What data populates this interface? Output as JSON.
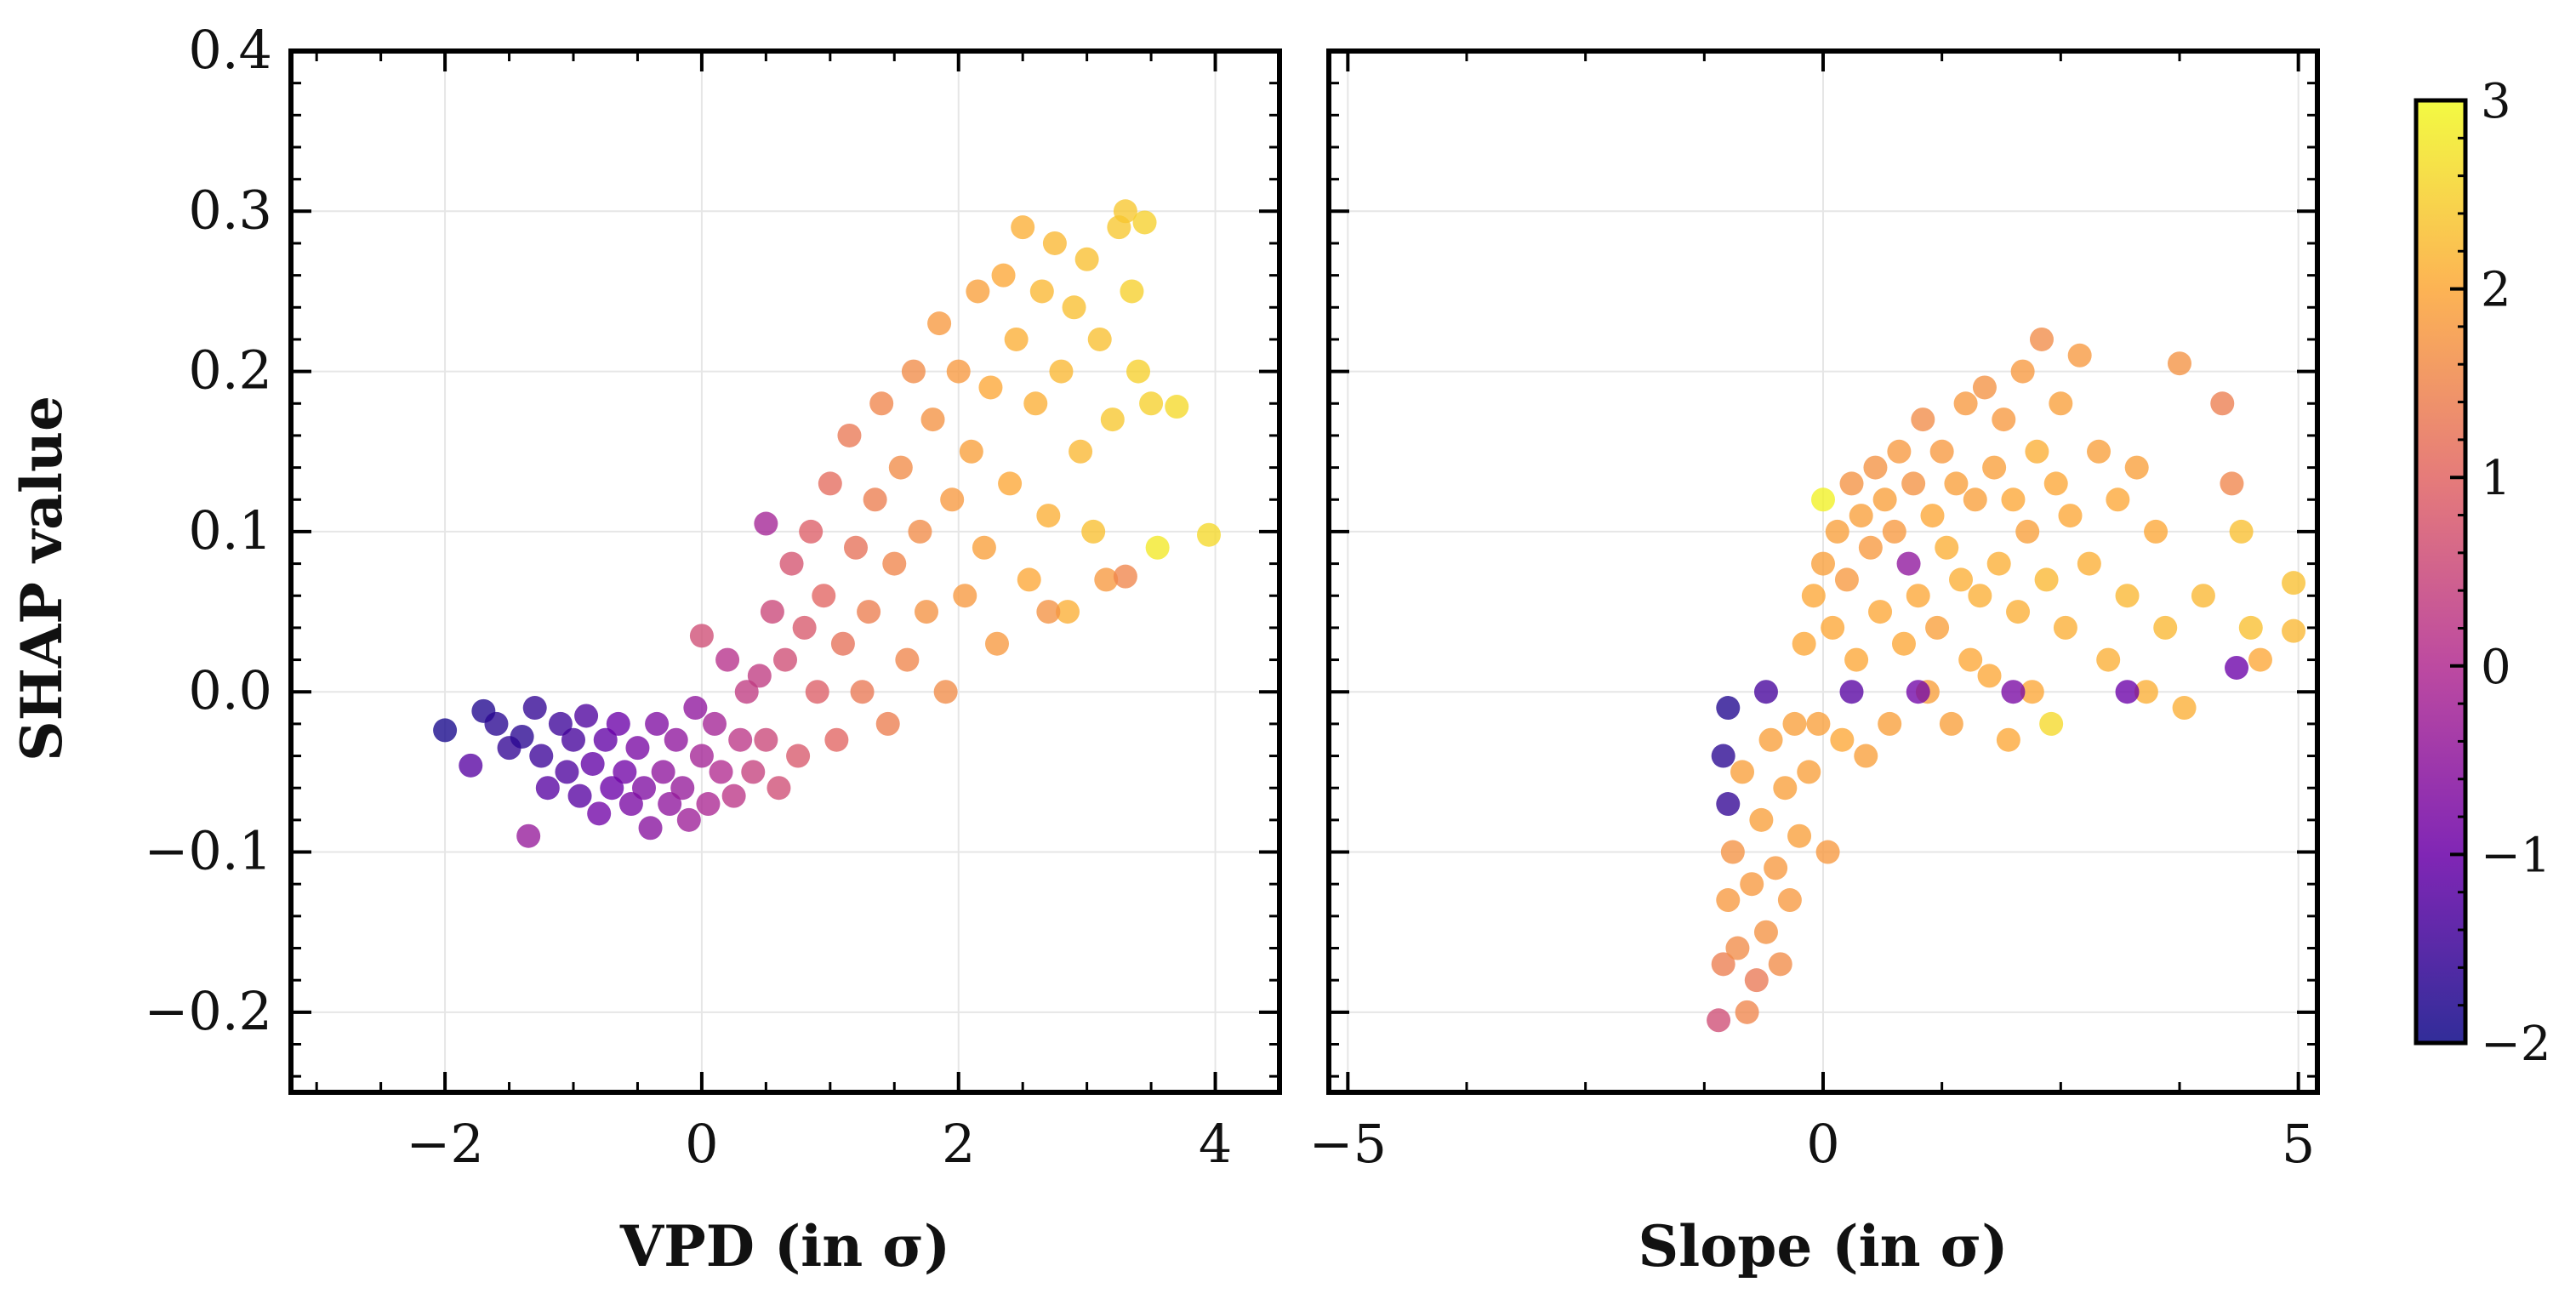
{
  "colors": {
    "colormap": "plasma",
    "colormap_stops": [
      "#0d0887",
      "#6a00a8",
      "#b12a90",
      "#e16462",
      "#fca636",
      "#f0f921"
    ],
    "marker_alpha": 0.78,
    "gridline": "#e6e6e6",
    "axes": "#000000"
  },
  "ylabel": "SHAP value",
  "colorbar": {
    "range": [
      -2,
      3
    ],
    "ticks": [
      -2,
      -1,
      0,
      1,
      2,
      3
    ],
    "tick_labels": [
      "−2",
      "−1",
      "0",
      "1",
      "2",
      "3"
    ]
  },
  "chart_data": [
    {
      "type": "scatter",
      "xlabel": "VPD (in σ)",
      "ylabel": "SHAP value",
      "xlim": [
        -3.2,
        4.5
      ],
      "ylim": [
        -0.25,
        0.4
      ],
      "xticks": [
        -2,
        0,
        2,
        4
      ],
      "xtick_labels": [
        "−2",
        "0",
        "2",
        "4"
      ],
      "yticks": [
        -0.2,
        -0.1,
        0.0,
        0.1,
        0.2,
        0.3,
        0.4
      ],
      "ytick_labels": [
        "−0.2",
        "−0.1",
        "0.0",
        "0.1",
        "0.2",
        "0.3",
        "0.4"
      ],
      "grid": true,
      "color_by": "feature value (in σ)",
      "points": [
        [
          -2.0,
          -0.024,
          -1.9
        ],
        [
          -1.8,
          -0.046,
          -1.2
        ],
        [
          -1.7,
          -0.012,
          -1.8
        ],
        [
          -1.6,
          -0.02,
          -1.7
        ],
        [
          -1.5,
          -0.035,
          -1.6
        ],
        [
          -1.4,
          -0.028,
          -1.7
        ],
        [
          -1.35,
          -0.09,
          -0.4
        ],
        [
          -1.3,
          -0.01,
          -1.6
        ],
        [
          -1.25,
          -0.04,
          -1.5
        ],
        [
          -1.2,
          -0.06,
          -1.2
        ],
        [
          -1.1,
          -0.02,
          -1.5
        ],
        [
          -1.05,
          -0.05,
          -1.3
        ],
        [
          -1.0,
          -0.03,
          -1.4
        ],
        [
          -0.95,
          -0.065,
          -1.2
        ],
        [
          -0.9,
          -0.015,
          -1.3
        ],
        [
          -0.85,
          -0.045,
          -1.1
        ],
        [
          -0.8,
          -0.076,
          -0.9
        ],
        [
          -0.75,
          -0.03,
          -1.1
        ],
        [
          -0.7,
          -0.06,
          -1.0
        ],
        [
          -0.65,
          -0.02,
          -1.0
        ],
        [
          -0.6,
          -0.05,
          -0.9
        ],
        [
          -0.55,
          -0.07,
          -0.8
        ],
        [
          -0.5,
          -0.035,
          -0.8
        ],
        [
          -0.45,
          -0.06,
          -0.7
        ],
        [
          -0.4,
          -0.085,
          -0.6
        ],
        [
          -0.35,
          -0.02,
          -0.7
        ],
        [
          -0.3,
          -0.05,
          -0.5
        ],
        [
          -0.25,
          -0.07,
          -0.5
        ],
        [
          -0.2,
          -0.03,
          -0.5
        ],
        [
          -0.15,
          -0.06,
          -0.4
        ],
        [
          -0.1,
          -0.08,
          -0.3
        ],
        [
          -0.05,
          -0.01,
          -0.5
        ],
        [
          0.0,
          -0.04,
          -0.2
        ],
        [
          0.0,
          0.035,
          0.6
        ],
        [
          0.05,
          -0.07,
          -0.1
        ],
        [
          0.1,
          -0.02,
          -0.2
        ],
        [
          0.15,
          -0.05,
          0.0
        ],
        [
          0.2,
          0.02,
          0.1
        ],
        [
          0.25,
          -0.065,
          0.2
        ],
        [
          0.3,
          -0.03,
          0.2
        ],
        [
          0.35,
          0.0,
          0.3
        ],
        [
          0.4,
          -0.05,
          0.4
        ],
        [
          0.45,
          0.01,
          0.3
        ],
        [
          0.5,
          0.105,
          -0.2
        ],
        [
          0.5,
          -0.03,
          0.5
        ],
        [
          0.55,
          0.05,
          0.5
        ],
        [
          0.6,
          -0.06,
          0.6
        ],
        [
          0.65,
          0.02,
          0.6
        ],
        [
          0.7,
          0.08,
          0.7
        ],
        [
          0.75,
          -0.04,
          0.8
        ],
        [
          0.8,
          0.04,
          0.8
        ],
        [
          0.85,
          0.1,
          0.9
        ],
        [
          0.9,
          0.0,
          0.9
        ],
        [
          0.95,
          0.06,
          1.0
        ],
        [
          1.0,
          0.13,
          1.1
        ],
        [
          1.05,
          -0.03,
          1.0
        ],
        [
          1.1,
          0.03,
          1.2
        ],
        [
          1.15,
          0.16,
          1.3
        ],
        [
          1.2,
          0.09,
          1.2
        ],
        [
          1.25,
          0.0,
          1.3
        ],
        [
          1.3,
          0.05,
          1.4
        ],
        [
          1.35,
          0.12,
          1.4
        ],
        [
          1.4,
          0.18,
          1.5
        ],
        [
          1.45,
          -0.02,
          1.4
        ],
        [
          1.5,
          0.08,
          1.5
        ],
        [
          1.55,
          0.14,
          1.6
        ],
        [
          1.6,
          0.02,
          1.5
        ],
        [
          1.65,
          0.2,
          1.6
        ],
        [
          1.7,
          0.1,
          1.6
        ],
        [
          1.75,
          0.05,
          1.7
        ],
        [
          1.8,
          0.17,
          1.7
        ],
        [
          1.85,
          0.23,
          1.8
        ],
        [
          1.9,
          0.0,
          1.6
        ],
        [
          1.95,
          0.12,
          1.8
        ],
        [
          2.0,
          0.2,
          1.8
        ],
        [
          2.05,
          0.06,
          1.8
        ],
        [
          2.1,
          0.15,
          1.9
        ],
        [
          2.15,
          0.25,
          1.9
        ],
        [
          2.2,
          0.09,
          1.9
        ],
        [
          2.25,
          0.19,
          2.0
        ],
        [
          2.3,
          0.03,
          1.8
        ],
        [
          2.35,
          0.26,
          2.0
        ],
        [
          2.4,
          0.13,
          2.0
        ],
        [
          2.45,
          0.22,
          2.1
        ],
        [
          2.5,
          0.29,
          2.1
        ],
        [
          2.55,
          0.07,
          2.0
        ],
        [
          2.6,
          0.18,
          2.1
        ],
        [
          2.65,
          0.25,
          2.2
        ],
        [
          2.7,
          0.11,
          2.1
        ],
        [
          2.75,
          0.28,
          2.2
        ],
        [
          2.8,
          0.2,
          2.2
        ],
        [
          2.85,
          0.05,
          2.1
        ],
        [
          2.9,
          0.24,
          2.3
        ],
        [
          2.95,
          0.15,
          2.2
        ],
        [
          3.0,
          0.27,
          2.3
        ],
        [
          3.05,
          0.1,
          2.3
        ],
        [
          3.1,
          0.22,
          2.3
        ],
        [
          3.15,
          0.07,
          1.8
        ],
        [
          3.2,
          0.17,
          2.4
        ],
        [
          3.25,
          0.29,
          2.4
        ],
        [
          3.3,
          0.3,
          2.4
        ],
        [
          3.35,
          0.25,
          2.5
        ],
        [
          3.4,
          0.2,
          2.5
        ],
        [
          3.45,
          0.293,
          2.5
        ],
        [
          3.5,
          0.18,
          2.5
        ],
        [
          3.55,
          0.09,
          2.8
        ],
        [
          3.7,
          0.178,
          2.6
        ],
        [
          3.95,
          0.098,
          2.6
        ],
        [
          3.3,
          0.072,
          1.5
        ],
        [
          2.7,
          0.05,
          1.7
        ]
      ]
    },
    {
      "type": "scatter",
      "xlabel": "Slope (in σ)",
      "ylabel": "",
      "xlim": [
        -5.2,
        5.2
      ],
      "ylim": [
        -0.25,
        0.4
      ],
      "xticks": [
        -5,
        0,
        5
      ],
      "xtick_labels": [
        "−5",
        "0",
        "5"
      ],
      "yticks": [
        -0.2,
        -0.1,
        0.0,
        0.1,
        0.2,
        0.3,
        0.4
      ],
      "ytick_labels": [
        "",
        "",
        "",
        "",
        "",
        "",
        ""
      ],
      "grid": true,
      "color_by": "feature value (in σ)",
      "points": [
        [
          -1.1,
          -0.205,
          0.6
        ],
        [
          -1.05,
          -0.17,
          1.4
        ],
        [
          -1.0,
          -0.13,
          1.8
        ],
        [
          -1.0,
          -0.07,
          -1.6
        ],
        [
          -1.05,
          -0.04,
          -1.7
        ],
        [
          -1.0,
          -0.01,
          -1.8
        ],
        [
          -0.95,
          -0.1,
          1.7
        ],
        [
          -0.9,
          -0.16,
          1.6
        ],
        [
          -0.85,
          -0.05,
          1.9
        ],
        [
          -0.8,
          -0.2,
          1.5
        ],
        [
          -0.75,
          -0.12,
          1.8
        ],
        [
          -0.7,
          -0.18,
          1.3
        ],
        [
          -0.65,
          -0.08,
          1.9
        ],
        [
          -0.6,
          -0.15,
          1.7
        ],
        [
          -0.55,
          -0.03,
          1.9
        ],
        [
          -0.5,
          -0.11,
          1.8
        ],
        [
          -0.45,
          -0.17,
          1.6
        ],
        [
          -0.4,
          -0.06,
          1.9
        ],
        [
          -0.35,
          -0.13,
          1.8
        ],
        [
          -0.3,
          -0.02,
          1.9
        ],
        [
          -0.25,
          -0.09,
          1.9
        ],
        [
          -0.2,
          0.03,
          2.0
        ],
        [
          -0.15,
          -0.05,
          1.9
        ],
        [
          -0.1,
          0.06,
          2.0
        ],
        [
          -0.05,
          -0.02,
          1.9
        ],
        [
          0.0,
          0.12,
          2.9
        ],
        [
          0.0,
          0.08,
          1.9
        ],
        [
          0.05,
          -0.1,
          1.8
        ],
        [
          0.1,
          0.04,
          2.0
        ],
        [
          0.15,
          0.1,
          1.9
        ],
        [
          0.2,
          -0.03,
          2.0
        ],
        [
          0.25,
          0.07,
          1.8
        ],
        [
          0.3,
          0.13,
          1.7
        ],
        [
          0.35,
          0.02,
          2.0
        ],
        [
          0.4,
          0.11,
          1.9
        ],
        [
          0.45,
          -0.04,
          1.9
        ],
        [
          0.5,
          0.09,
          1.8
        ],
        [
          0.55,
          0.14,
          1.7
        ],
        [
          0.6,
          0.05,
          2.0
        ],
        [
          0.65,
          0.12,
          1.9
        ],
        [
          0.7,
          -0.02,
          1.9
        ],
        [
          0.75,
          0.1,
          1.8
        ],
        [
          0.8,
          0.15,
          1.8
        ],
        [
          0.85,
          0.03,
          2.0
        ],
        [
          0.9,
          0.08,
          -0.5
        ],
        [
          0.95,
          0.13,
          1.7
        ],
        [
          1.0,
          0.06,
          2.0
        ],
        [
          1.05,
          0.17,
          1.6
        ],
        [
          1.1,
          0.0,
          1.9
        ],
        [
          1.15,
          0.11,
          2.0
        ],
        [
          1.2,
          0.04,
          1.9
        ],
        [
          1.25,
          0.15,
          1.8
        ],
        [
          1.3,
          0.09,
          2.1
        ],
        [
          1.35,
          -0.02,
          1.9
        ],
        [
          1.4,
          0.13,
          1.9
        ],
        [
          1.45,
          0.07,
          2.1
        ],
        [
          1.5,
          0.18,
          1.8
        ],
        [
          1.55,
          0.02,
          2.0
        ],
        [
          1.6,
          0.12,
          1.9
        ],
        [
          1.65,
          0.06,
          2.1
        ],
        [
          1.7,
          0.19,
          1.7
        ],
        [
          1.75,
          0.01,
          2.0
        ],
        [
          1.8,
          0.14,
          1.9
        ],
        [
          1.85,
          0.08,
          2.1
        ],
        [
          1.9,
          0.17,
          1.8
        ],
        [
          1.95,
          -0.03,
          2.0
        ],
        [
          2.0,
          0.12,
          2.0
        ],
        [
          2.05,
          0.05,
          2.1
        ],
        [
          2.1,
          0.2,
          1.8
        ],
        [
          2.15,
          0.1,
          1.9
        ],
        [
          2.2,
          0.0,
          2.0
        ],
        [
          2.25,
          0.15,
          2.1
        ],
        [
          2.3,
          0.22,
          1.6
        ],
        [
          2.35,
          0.07,
          2.2
        ],
        [
          2.4,
          -0.02,
          2.6
        ],
        [
          2.45,
          0.13,
          2.0
        ],
        [
          2.5,
          0.18,
          1.9
        ],
        [
          2.55,
          0.04,
          2.1
        ],
        [
          2.6,
          0.11,
          2.0
        ],
        [
          2.7,
          0.21,
          1.8
        ],
        [
          2.8,
          0.08,
          2.1
        ],
        [
          2.9,
          0.15,
          1.9
        ],
        [
          3.0,
          0.02,
          2.1
        ],
        [
          3.1,
          0.12,
          2.0
        ],
        [
          3.2,
          0.06,
          2.2
        ],
        [
          3.3,
          0.14,
          1.9
        ],
        [
          3.4,
          0.0,
          2.1
        ],
        [
          3.5,
          0.1,
          2.0
        ],
        [
          3.6,
          0.04,
          2.2
        ],
        [
          3.75,
          0.205,
          1.7
        ],
        [
          3.8,
          -0.01,
          2.1
        ],
        [
          4.0,
          0.06,
          2.2
        ],
        [
          4.2,
          0.18,
          1.4
        ],
        [
          4.3,
          0.13,
          1.5
        ],
        [
          4.35,
          0.015,
          -1.0
        ],
        [
          4.4,
          0.1,
          2.3
        ],
        [
          4.5,
          0.04,
          2.3
        ],
        [
          4.6,
          0.02,
          2.0
        ],
        [
          4.95,
          0.068,
          2.3
        ],
        [
          4.95,
          0.038,
          2.2
        ],
        [
          3.2,
          0.0,
          -1.0
        ],
        [
          2.0,
          0.0,
          -0.8
        ],
        [
          1.0,
          0.0,
          -0.9
        ],
        [
          0.3,
          0.0,
          -1.2
        ],
        [
          -0.6,
          0.0,
          -1.4
        ]
      ]
    }
  ]
}
